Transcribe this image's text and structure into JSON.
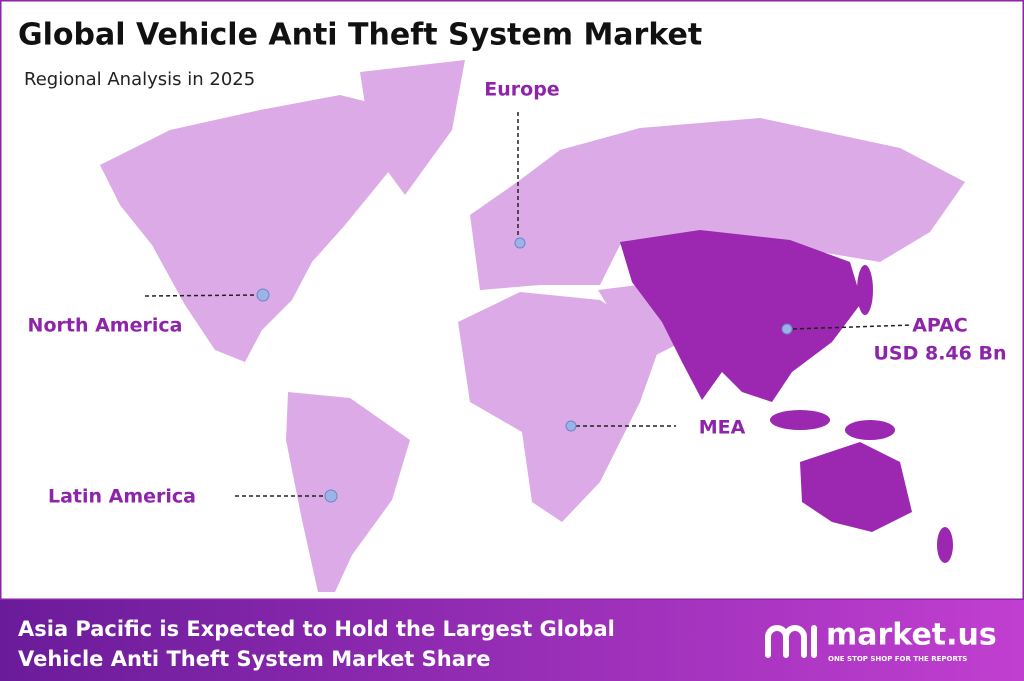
{
  "header": {
    "title": "Global Vehicle Anti Theft System Market",
    "subtitle": "Regional Analysis in 2025"
  },
  "regions": [
    {
      "label": "Europe"
    },
    {
      "label": "North America"
    },
    {
      "label": "APAC",
      "value": "USD 8.46 Bn"
    },
    {
      "label": "MEA"
    },
    {
      "label": "Latin America"
    }
  ],
  "footer": {
    "lines": [
      "Asia Pacific is Expected to Hold the Largest Global",
      "Vehicle Anti Theft System Market Share"
    ]
  },
  "logo": {
    "name": "market.us",
    "tagline": "ONE STOP SHOP FOR THE REPORTS"
  }
}
